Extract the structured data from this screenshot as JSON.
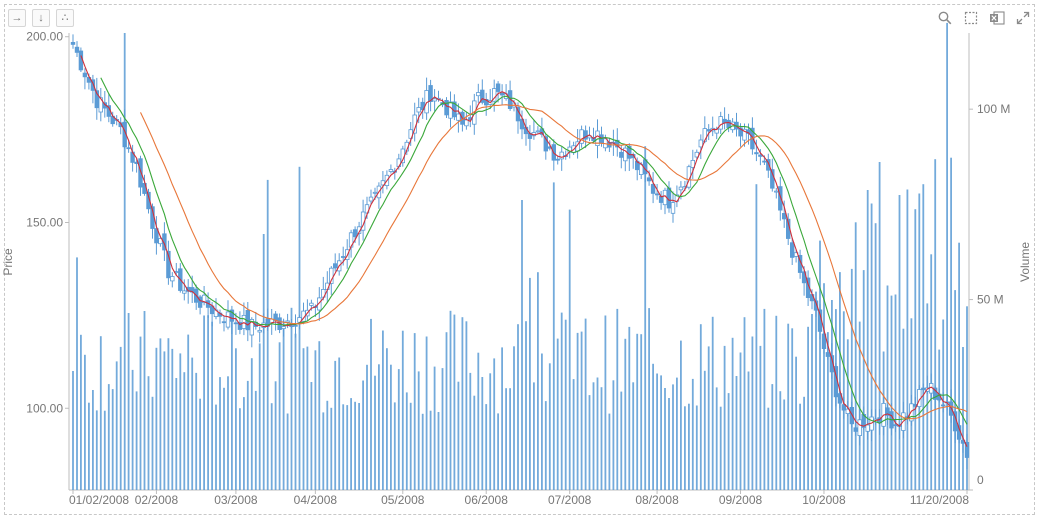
{
  "toolbar": {
    "left_icons": [
      "sort-horizontal-icon",
      "sort-vertical-icon",
      "scatter-dots-icon"
    ],
    "right_icons": [
      "search-icon",
      "selection-box-icon",
      "excel-export-icon",
      "expand-icon"
    ]
  },
  "chart_data": {
    "type": "candlestick-with-volume",
    "ylabel": "Price",
    "y2label": "Volume",
    "ylim": [
      78,
      201
    ],
    "y_ticks": [
      "200.00",
      "150.00",
      "100.00"
    ],
    "y_tick_values": [
      200,
      150,
      100
    ],
    "y2lim": [
      0,
      120
    ],
    "y2_ticks": [
      "100 M",
      "50 M",
      "0"
    ],
    "y2_tick_values": [
      100,
      50,
      0
    ],
    "x_ticks": [
      "01/02/2008",
      "02/2008",
      "03/2008",
      "04/2008",
      "05/2008",
      "06/2008",
      "07/2008",
      "08/2008",
      "09/2008",
      "10/2008",
      "11/20/2008"
    ],
    "x_tick_index": [
      0,
      21,
      41,
      61,
      83,
      104,
      125,
      147,
      168,
      189,
      225
    ],
    "n_days": 226,
    "price_anchors": [
      [
        0,
        198
      ],
      [
        6,
        183
      ],
      [
        12,
        175
      ],
      [
        16,
        165
      ],
      [
        20,
        150
      ],
      [
        24,
        137
      ],
      [
        28,
        132
      ],
      [
        33,
        128
      ],
      [
        38,
        125
      ],
      [
        45,
        122
      ],
      [
        52,
        123
      ],
      [
        60,
        126
      ],
      [
        64,
        134
      ],
      [
        68,
        142
      ],
      [
        72,
        150
      ],
      [
        76,
        156
      ],
      [
        82,
        168
      ],
      [
        86,
        178
      ],
      [
        90,
        185
      ],
      [
        95,
        180
      ],
      [
        98,
        176
      ],
      [
        102,
        183
      ],
      [
        106,
        185
      ],
      [
        110,
        182
      ],
      [
        114,
        176
      ],
      [
        118,
        172
      ],
      [
        122,
        168
      ],
      [
        126,
        172
      ],
      [
        130,
        175
      ],
      [
        134,
        173
      ],
      [
        138,
        170
      ],
      [
        142,
        165
      ],
      [
        146,
        159
      ],
      [
        150,
        156
      ],
      [
        154,
        162
      ],
      [
        158,
        172
      ],
      [
        162,
        177
      ],
      [
        166,
        175
      ],
      [
        170,
        172
      ],
      [
        174,
        165
      ],
      [
        177,
        156
      ],
      [
        180,
        146
      ],
      [
        184,
        133
      ],
      [
        187,
        125
      ],
      [
        190,
        112
      ],
      [
        193,
        102
      ],
      [
        196,
        95
      ],
      [
        200,
        97
      ],
      [
        204,
        99
      ],
      [
        207,
        96
      ],
      [
        211,
        100
      ],
      [
        215,
        106
      ],
      [
        218,
        103
      ],
      [
        222,
        96
      ],
      [
        225,
        88
      ]
    ],
    "series": [
      {
        "name": "",
        "color": "#d0303a",
        "period": 3
      },
      {
        "name": "",
        "color": "#3aa83a",
        "period": 8
      },
      {
        "name": "",
        "color": "#e8773a",
        "period": 18
      }
    ],
    "candle_color": "#5b9bd5",
    "volume_color": "#5b9bd5"
  }
}
